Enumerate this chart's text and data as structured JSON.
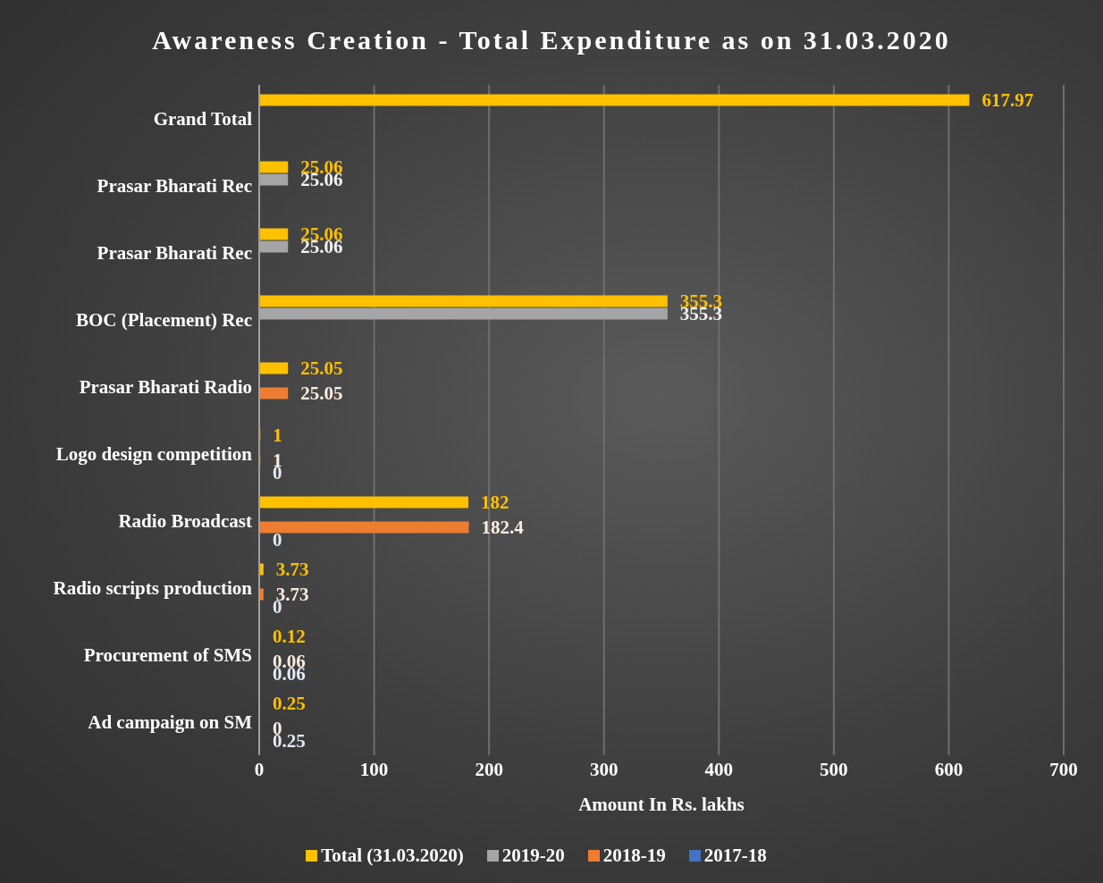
{
  "chart_data": {
    "type": "bar",
    "orientation": "horizontal",
    "title": "Awareness Creation - Total Expenditure as on 31.03.2020",
    "xlabel": "Amount In Rs. lakhs",
    "categories": [
      "Grand Total",
      "Prasar Bharati Rec",
      "Prasar Bharati Rec",
      "BOC (Placement) Rec",
      "Prasar Bharati Radio",
      "Logo design competition",
      "Radio Broadcast",
      "Radio scripts production",
      "Procurement of SMS",
      "Ad campaign on SM"
    ],
    "series": [
      {
        "name": "Total (31.03.2020)",
        "color": "#ffc000",
        "values": [
          617.97,
          25.06,
          25.06,
          355.3,
          25.05,
          1,
          182,
          3.73,
          0.12,
          0.25
        ]
      },
      {
        "name": "2019-20",
        "color": "#a5a5a5",
        "values": [
          null,
          25.06,
          25.06,
          355.3,
          null,
          null,
          null,
          null,
          null,
          null
        ]
      },
      {
        "name": "2018-19",
        "color": "#ed7d31",
        "values": [
          null,
          null,
          null,
          null,
          25.05,
          1,
          182.4,
          3.73,
          0.06,
          0
        ]
      },
      {
        "name": "2017-18",
        "color": "#4472c4",
        "values": [
          null,
          null,
          null,
          null,
          null,
          0,
          0,
          0,
          0.06,
          0.25
        ]
      }
    ],
    "xlim": [
      0,
      700
    ],
    "xticks": [
      0,
      100,
      200,
      300,
      400,
      500,
      600,
      700
    ],
    "grid": "x",
    "legend": "bottom",
    "data_labels": true
  }
}
